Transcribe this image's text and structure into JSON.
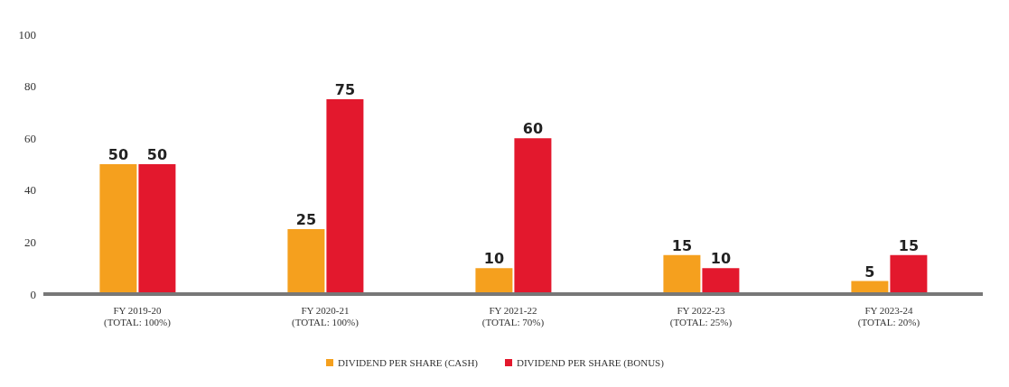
{
  "chart_data": {
    "type": "bar",
    "categories": [
      "FY 2019-20\n(TOTAL: 100%)",
      "FY 2020-21\n(TOTAL: 100%)",
      "FY 2021-22\n(TOTAL: 70%)",
      "FY 2022-23\n(TOTAL: 25%)",
      "FY 2023-24\n(TOTAL: 20%)"
    ],
    "series": [
      {
        "name": "DIVIDEND PER SHARE (CASH)",
        "color": "#f5a01e",
        "values": [
          50,
          25,
          10,
          15,
          5
        ]
      },
      {
        "name": "DIVIDEND PER SHARE (BONUS)",
        "color": "#e3182d",
        "values": [
          50,
          75,
          60,
          10,
          15
        ]
      }
    ],
    "ylim": [
      0,
      100
    ],
    "yticks": [
      0,
      20,
      40,
      60,
      80,
      100
    ],
    "legend": "bottom",
    "data_labels": true
  }
}
